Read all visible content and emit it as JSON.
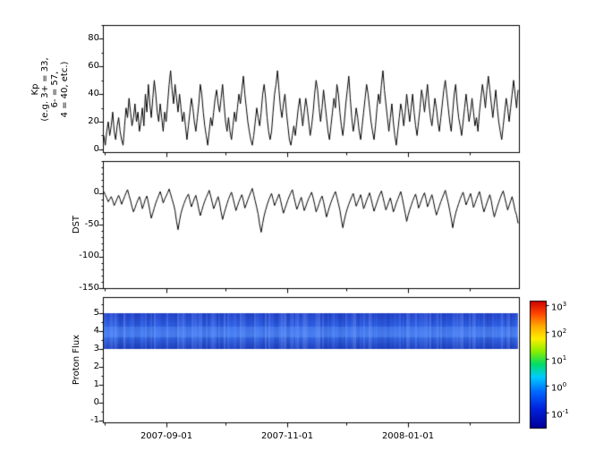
{
  "axes": {
    "kp": {
      "label_lines": [
        "Kp",
        "(e.g. 3+ = 33,",
        "6- = 57,",
        "4 = 40, etc.)"
      ],
      "ticks": [
        "80",
        "60",
        "40",
        "20",
        "0"
      ]
    },
    "dst": {
      "label": "DST",
      "ticks": [
        "0",
        "-50",
        "-100",
        "-150"
      ]
    },
    "flux": {
      "label": "Proton Flux",
      "ticks": [
        "5",
        "4",
        "3",
        "2",
        "1",
        "0",
        "-1"
      ]
    },
    "x": {
      "ticks": [
        "2007-09-01",
        "2007-11-01",
        "2008-01-01"
      ]
    }
  },
  "colorbar": {
    "base": "10",
    "exponents": [
      "3",
      "2",
      "1",
      "0",
      "-1"
    ]
  },
  "chart_data": [
    {
      "type": "line",
      "name": "Kp",
      "ylabel": "Kp (e.g. 3+ = 33, 6- = 57, 4 = 40, etc.)",
      "color": "#000000",
      "ylim": [
        -2,
        90
      ],
      "yticks": [
        0,
        20,
        40,
        60,
        80
      ],
      "yminor_step": 10,
      "x_start": "2007-07-31",
      "x_end": "2008-02-26",
      "xticks": [
        "2007-09-01",
        "2007-11-01",
        "2008-01-01"
      ],
      "values": [
        10,
        3,
        13,
        20,
        10,
        17,
        27,
        13,
        7,
        17,
        23,
        13,
        7,
        3,
        17,
        30,
        23,
        37,
        27,
        17,
        23,
        33,
        20,
        27,
        13,
        20,
        30,
        17,
        40,
        27,
        47,
        33,
        23,
        37,
        50,
        40,
        27,
        20,
        33,
        23,
        13,
        27,
        20,
        33,
        47,
        57,
        43,
        33,
        47,
        37,
        27,
        40,
        30,
        20,
        27,
        17,
        7,
        17,
        27,
        37,
        30,
        20,
        13,
        23,
        33,
        47,
        40,
        27,
        17,
        10,
        3,
        13,
        23,
        17,
        27,
        37,
        43,
        33,
        27,
        37,
        47,
        33,
        20,
        13,
        23,
        13,
        7,
        17,
        27,
        20,
        30,
        40,
        33,
        43,
        53,
        40,
        30,
        20,
        13,
        7,
        3,
        10,
        20,
        30,
        23,
        17,
        27,
        40,
        47,
        37,
        23,
        13,
        7,
        13,
        27,
        40,
        47,
        57,
        43,
        30,
        23,
        33,
        40,
        27,
        17,
        7,
        3,
        10,
        17,
        10,
        20,
        30,
        37,
        27,
        17,
        27,
        37,
        30,
        20,
        10,
        17,
        27,
        40,
        50,
        43,
        30,
        20,
        30,
        43,
        33,
        23,
        13,
        7,
        17,
        27,
        37,
        30,
        47,
        40,
        27,
        17,
        10,
        20,
        33,
        43,
        53,
        37,
        23,
        13,
        20,
        30,
        23,
        13,
        7,
        17,
        27,
        37,
        47,
        40,
        30,
        20,
        13,
        7,
        17,
        30,
        40,
        33,
        47,
        57,
        43,
        33,
        23,
        13,
        23,
        33,
        20,
        10,
        3,
        13,
        23,
        33,
        27,
        17,
        27,
        40,
        30,
        20,
        30,
        40,
        27,
        17,
        10,
        20,
        30,
        43,
        37,
        27,
        37,
        47,
        33,
        23,
        17,
        27,
        37,
        30,
        20,
        13,
        23,
        33,
        43,
        50,
        40,
        30,
        20,
        13,
        27,
        40,
        47,
        33,
        23,
        17,
        10,
        20,
        30,
        40,
        30,
        20,
        27,
        37,
        27,
        17,
        23,
        13,
        27,
        37,
        47,
        40,
        30,
        43,
        53,
        43,
        33,
        23,
        33,
        43,
        30,
        20,
        13,
        7,
        17,
        27,
        37,
        30,
        20,
        30,
        40,
        50,
        40,
        30,
        43
      ]
    },
    {
      "type": "line",
      "name": "DST",
      "ylabel": "DST",
      "color": "#000000",
      "ylim": [
        -150,
        50
      ],
      "yticks": [
        -150,
        -100,
        -50,
        0
      ],
      "yminor_step": 10,
      "values": [
        2,
        -3,
        -8,
        -14,
        -10,
        -6,
        -12,
        -20,
        -15,
        -9,
        -4,
        -10,
        -18,
        -12,
        -6,
        0,
        5,
        -4,
        -12,
        -22,
        -30,
        -24,
        -17,
        -11,
        -6,
        -14,
        -25,
        -18,
        -10,
        -5,
        -15,
        -28,
        -40,
        -32,
        -24,
        -16,
        -10,
        -4,
        2,
        -6,
        -16,
        -10,
        -5,
        0,
        6,
        -2,
        -10,
        -18,
        -28,
        -45,
        -58,
        -44,
        -32,
        -24,
        -17,
        -11,
        -6,
        -2,
        -12,
        -22,
        -16,
        -9,
        -4,
        -14,
        -26,
        -36,
        -28,
        -20,
        -13,
        -7,
        -2,
        4,
        -5,
        -15,
        -25,
        -19,
        -12,
        -6,
        -16,
        -30,
        -42,
        -33,
        -25,
        -17,
        -10,
        -4,
        1,
        -8,
        -18,
        -28,
        -21,
        -14,
        -8,
        -3,
        -12,
        -24,
        -18,
        -11,
        -5,
        1,
        7,
        -3,
        -13,
        -23,
        -34,
        -50,
        -62,
        -48,
        -36,
        -27,
        -19,
        -12,
        -6,
        -1,
        -10,
        -20,
        -14,
        -8,
        -2,
        -11,
        -22,
        -32,
        -25,
        -18,
        -11,
        -5,
        0,
        5,
        -6,
        -16,
        -26,
        -20,
        -13,
        -7,
        -17,
        -28,
        -22,
        -15,
        -9,
        -4,
        1,
        -8,
        -18,
        -30,
        -24,
        -17,
        -10,
        -5,
        -14,
        -26,
        -38,
        -30,
        -22,
        -15,
        -9,
        -3,
        2,
        -7,
        -17,
        -27,
        -42,
        -55,
        -43,
        -33,
        -25,
        -18,
        -12,
        -6,
        -1,
        -11,
        -21,
        -15,
        -9,
        -3,
        -13,
        -25,
        -19,
        -12,
        -6,
        0,
        -9,
        -19,
        -29,
        -22,
        -15,
        -8,
        -2,
        3,
        -7,
        -17,
        -27,
        -21,
        -14,
        -8,
        -18,
        -30,
        -24,
        -16,
        -10,
        -4,
        2,
        -8,
        -20,
        -32,
        -45,
        -35,
        -27,
        -20,
        -13,
        -7,
        -2,
        -12,
        -24,
        -18,
        -11,
        -5,
        0,
        -10,
        -22,
        -16,
        -9,
        -3,
        -13,
        -25,
        -35,
        -28,
        -21,
        -14,
        -8,
        -2,
        4,
        -6,
        -16,
        -28,
        -40,
        -55,
        -42,
        -32,
        -24,
        -17,
        -10,
        -4,
        1,
        -9,
        -19,
        -13,
        -7,
        -1,
        -11,
        -23,
        -17,
        -10,
        -4,
        2,
        -8,
        -20,
        -30,
        -23,
        -16,
        -9,
        -3,
        -13,
        -27,
        -38,
        -30,
        -22,
        -15,
        -8,
        -2,
        3,
        -7,
        -17,
        -27,
        -20,
        -13,
        -6,
        -16,
        -28,
        -35,
        -48
      ]
    },
    {
      "type": "heatmap",
      "name": "Proton Flux",
      "ylabel": "Proton Flux",
      "ylim": [
        -1.1,
        5.9
      ],
      "yticks": [
        -1,
        0,
        1,
        2,
        3,
        4,
        5
      ],
      "band": {
        "y_from": 3.0,
        "y_to": 5.0,
        "approx_value_range": [
          0.05,
          0.3
        ]
      },
      "colorbar": {
        "scale": "log10",
        "tick_exponents": [
          3,
          2,
          1,
          0,
          -1
        ],
        "colormap": "jet",
        "vmin": 0.05,
        "vmax": 1000
      }
    }
  ]
}
